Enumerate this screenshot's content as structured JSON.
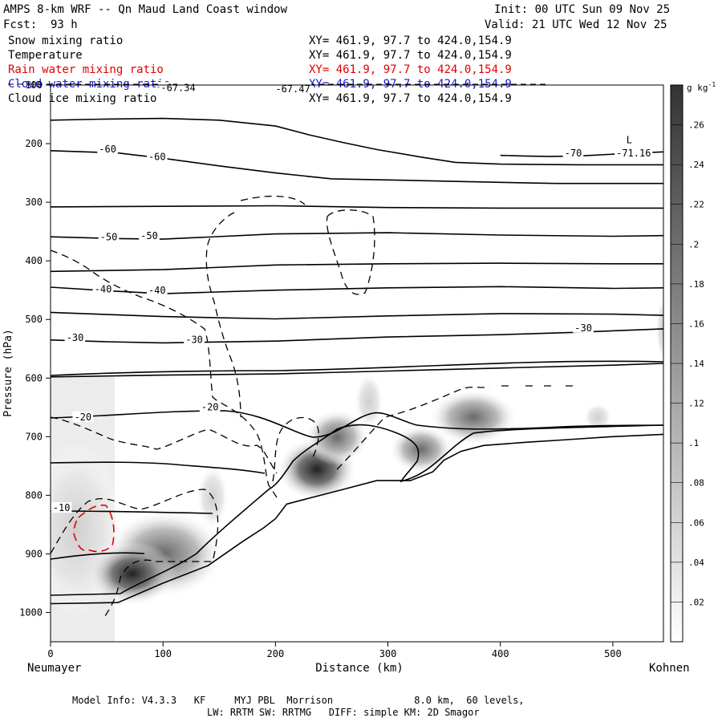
{
  "header": {
    "title": "AMPS 8-km WRF -- Qn Maud Land Coast window",
    "init_label": "Init: 00 UTC Sun 09 Nov 25",
    "fcst_label": "Fcst:  93 h",
    "valid_label": "Valid: 21 UTC Wed 12 Nov 25"
  },
  "fields": [
    {
      "name": "Snow mixing ratio",
      "xy": "XY= 461.9, 97.7 to 424.0,154.9",
      "color": "#000000"
    },
    {
      "name": "Temperature",
      "xy": "XY= 461.9, 97.7 to 424.0,154.9",
      "color": "#000000"
    },
    {
      "name": "Rain water mixing ratio",
      "xy": "XY= 461.9, 97.7 to 424.0,154.9",
      "color": "#e00000"
    },
    {
      "name": "Cloud water mixing ratio",
      "xy": "XY= 461.9, 97.7 to 424.0,154.9",
      "color": "#1a1ad0"
    },
    {
      "name": "Cloud ice mixing ratio",
      "xy": "XY= 461.9, 97.7 to 424.0,154.9",
      "color": "#000000"
    }
  ],
  "footer": {
    "line1": "Model Info: V4.3.3   KF     MYJ PBL  Morrison              8.0 km,  60 levels,",
    "line2": "LW: RRTM SW: RRTMG   DIFF: simple KM: 2D Smagor"
  },
  "chart_data": {
    "type": "cross-section",
    "title": "AMPS 8-km WRF -- Qn Maud Land Coast window",
    "xlabel": "Distance (km)",
    "ylabel": "Pressure (hPa)",
    "xlim": [
      0,
      545
    ],
    "ylim": [
      1050,
      100
    ],
    "x_ticks": [
      0,
      100,
      200,
      300,
      400,
      500
    ],
    "y_ticks": [
      100,
      200,
      300,
      400,
      500,
      600,
      700,
      800,
      900,
      1000
    ],
    "y_tick_labels": [
      "100",
      "200",
      "300",
      "400",
      "500",
      "600",
      "700",
      "800",
      "900",
      "1000"
    ],
    "x_start_label": "Neumayer",
    "x_end_label": "Kohnen",
    "colorbar": {
      "unit": "g kg",
      "unit_exp": "-1",
      "ticks": [
        ".26",
        ".24",
        ".22",
        ".2",
        ".18",
        ".16",
        ".14",
        ".12",
        ".1",
        ".08",
        ".06",
        ".04",
        ".02"
      ]
    },
    "temperature_labels": [
      {
        "text": "-67.34",
        "x": 98,
        "p": 110
      },
      {
        "text": "-67.47",
        "x": 200,
        "p": 112
      },
      {
        "text": "L",
        "x": 512,
        "p": 199
      },
      {
        "text": "-70",
        "x": 457,
        "p": 222
      },
      {
        "text": "-71.16",
        "x": 503,
        "p": 222
      },
      {
        "text": "-60",
        "x": 43,
        "p": 215
      },
      {
        "text": "-60",
        "x": 87,
        "p": 228
      },
      {
        "text": "-50",
        "x": 44,
        "p": 365
      },
      {
        "text": "-50",
        "x": 80,
        "p": 363
      },
      {
        "text": "-40",
        "x": 39,
        "p": 454
      },
      {
        "text": "-40",
        "x": 87,
        "p": 456
      },
      {
        "text": "-30",
        "x": 14,
        "p": 537
      },
      {
        "text": "-30",
        "x": 120,
        "p": 540
      },
      {
        "text": "-30",
        "x": 466,
        "p": 520
      },
      {
        "text": "-20",
        "x": 21,
        "p": 672
      },
      {
        "text": "-20",
        "x": 134,
        "p": 655
      },
      {
        "text": "-10",
        "x": 2,
        "p": 827
      }
    ],
    "temperature_isotherms": [
      {
        "level": -70,
        "x": [
          400,
          420,
          445,
          470,
          500,
          545
        ],
        "p": [
          220,
          221,
          222,
          221,
          218,
          214
        ]
      },
      {
        "level": -65,
        "x": [
          0,
          50,
          100,
          150,
          200,
          230,
          260,
          290,
          330,
          360,
          400,
          470,
          545
        ],
        "p": [
          160,
          158,
          157,
          160,
          170,
          185,
          198,
          210,
          223,
          232,
          235,
          236,
          236
        ]
      },
      {
        "level": -60,
        "x": [
          0,
          60,
          100,
          150,
          200,
          250,
          300,
          350,
          400,
          450,
          500,
          545
        ],
        "p": [
          212,
          216,
          225,
          238,
          250,
          260,
          262,
          264,
          266,
          268,
          268,
          268
        ]
      },
      {
        "level": -55,
        "x": [
          0,
          100,
          200,
          300,
          400,
          500,
          545
        ],
        "p": [
          308,
          307,
          306,
          309,
          310,
          310,
          310
        ]
      },
      {
        "level": -50,
        "x": [
          0,
          60,
          100,
          200,
          300,
          400,
          500,
          545
        ],
        "p": [
          359,
          362,
          363,
          354,
          352,
          356,
          358,
          357
        ]
      },
      {
        "level": -45,
        "x": [
          0,
          100,
          200,
          300,
          400,
          500,
          545
        ],
        "p": [
          418,
          415,
          407,
          405,
          404,
          405,
          405
        ]
      },
      {
        "level": -40,
        "x": [
          0,
          50,
          100,
          200,
          300,
          400,
          500,
          545
        ],
        "p": [
          445,
          451,
          456,
          450,
          446,
          444,
          447,
          446
        ]
      },
      {
        "level": -35,
        "x": [
          0,
          100,
          200,
          300,
          400,
          500,
          545
        ],
        "p": [
          488,
          495,
          499,
          494,
          490,
          491,
          493
        ]
      },
      {
        "level": -30,
        "x": [
          0,
          50,
          100,
          200,
          300,
          400,
          466,
          545
        ],
        "p": [
          535,
          538,
          540,
          537,
          530,
          526,
          522,
          516
        ]
      },
      {
        "level": -25,
        "x": [
          0,
          100,
          200,
          300,
          400,
          500,
          545
        ],
        "p": [
          598,
          595,
          593,
          588,
          583,
          578,
          575
        ]
      }
    ],
    "terrain_surface": {
      "x": [
        0,
        60,
        100,
        140,
        170,
        190,
        200,
        210,
        230,
        260,
        290,
        320,
        340,
        350,
        365,
        385,
        420,
        460,
        500,
        545
      ],
      "p": [
        985,
        983,
        950,
        920,
        880,
        855,
        840,
        815,
        805,
        790,
        775,
        775,
        760,
        740,
        725,
        715,
        710,
        705,
        700,
        696
      ]
    }
  }
}
